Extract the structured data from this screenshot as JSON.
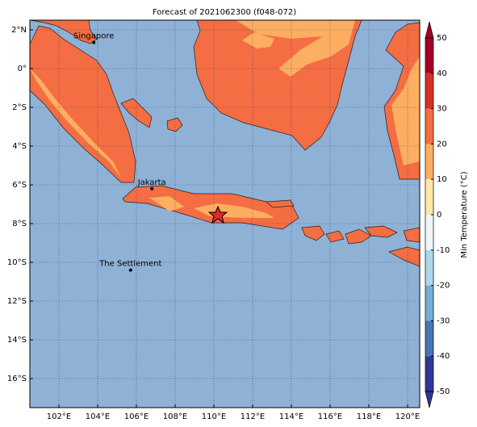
{
  "title": "Forecast of 2021062300 (f048-072)",
  "map": {
    "lon_ticks": [
      {
        "value": 102,
        "label": "102°E"
      },
      {
        "value": 104,
        "label": "104°E"
      },
      {
        "value": 106,
        "label": "106°E"
      },
      {
        "value": 108,
        "label": "108°E"
      },
      {
        "value": 110,
        "label": "110°E"
      },
      {
        "value": 112,
        "label": "112°E"
      },
      {
        "value": 114,
        "label": "114°E"
      },
      {
        "value": 116,
        "label": "116°E"
      },
      {
        "value": 118,
        "label": "118°E"
      },
      {
        "value": 120,
        "label": "120°E"
      }
    ],
    "lat_ticks": [
      {
        "value": 2,
        "label": "2°N"
      },
      {
        "value": 0,
        "label": "0°"
      },
      {
        "value": -2,
        "label": "2°S"
      },
      {
        "value": -4,
        "label": "4°S"
      },
      {
        "value": -6,
        "label": "6°S"
      },
      {
        "value": -8,
        "label": "8°S"
      },
      {
        "value": -10,
        "label": "10°S"
      },
      {
        "value": -12,
        "label": "12°S"
      },
      {
        "value": -14,
        "label": "14°S"
      },
      {
        "value": -16,
        "label": "16°S"
      }
    ],
    "cities": [
      {
        "name": "Singapore",
        "lon": 103.8,
        "lat": 1.35
      },
      {
        "name": "Jakarta",
        "lon": 106.8,
        "lat": -6.2
      },
      {
        "name": "The Settlement",
        "lon": 105.7,
        "lat": -10.4
      }
    ]
  },
  "colorbar": {
    "label": "Min Temperature (°C)",
    "ticks": [
      50,
      40,
      30,
      20,
      10,
      0,
      -10,
      -20,
      -30,
      -40,
      -50
    ],
    "colors": [
      "#a50026",
      "#d73027",
      "#f46d43",
      "#fdae61",
      "#fee8a8",
      "#eef6fa",
      "#abd9e9",
      "#74add1",
      "#4575b4",
      "#313695"
    ]
  }
}
